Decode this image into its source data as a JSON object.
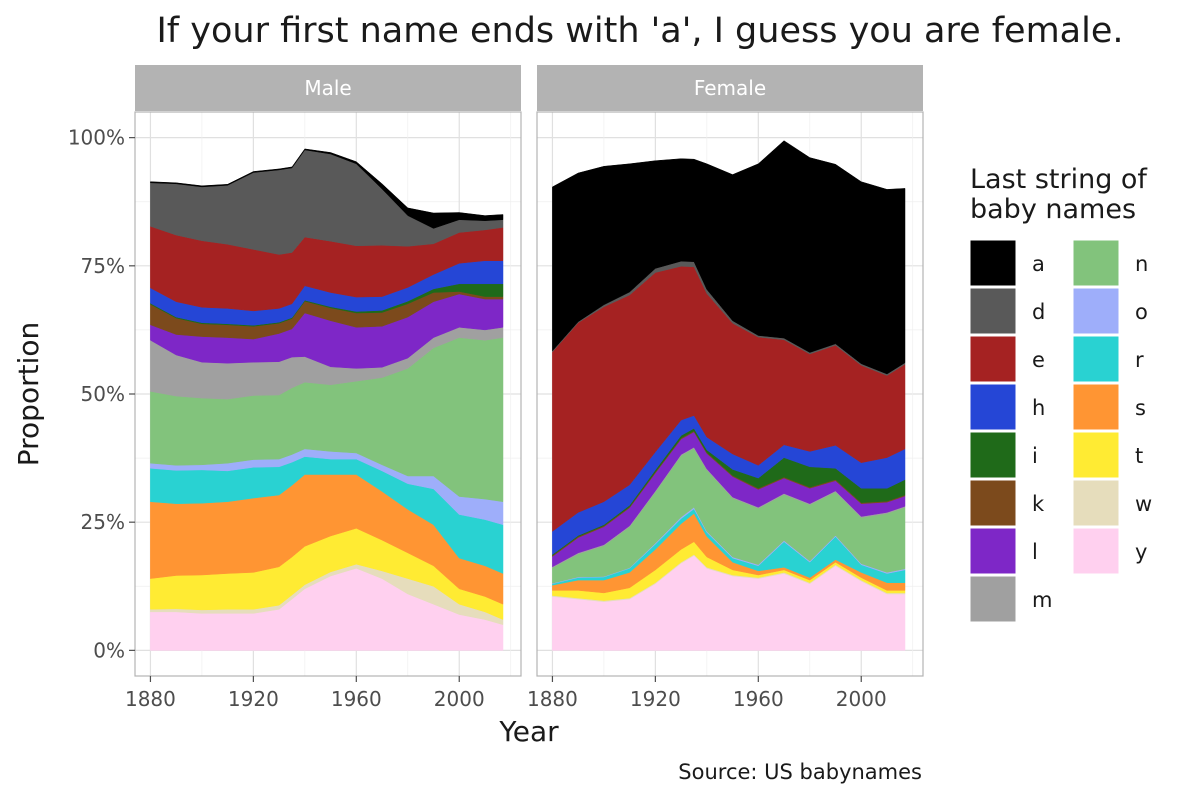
{
  "chart_data": {
    "type": "area",
    "title": "If your first name ends with 'a', I guess you are female.",
    "xlabel": "Year",
    "ylabel": "Proportion",
    "caption": "Source: US babynames",
    "x_ticks": [
      "1880",
      "1920",
      "1960",
      "2000"
    ],
    "y_ticks": [
      "0%",
      "25%",
      "50%",
      "75%",
      "100%"
    ],
    "xlim": [
      1874,
      2024
    ],
    "ylim": [
      -0.05,
      1.05
    ],
    "grid": true,
    "legend": {
      "title": [
        "Last string of",
        "baby names"
      ],
      "position": "right",
      "columns": 2
    },
    "stack_order_bottom_to_top": [
      "y",
      "w",
      "t",
      "s",
      "r",
      "o",
      "n",
      "m",
      "l",
      "k",
      "i",
      "h",
      "e",
      "d",
      "a"
    ],
    "colors": {
      "a": "#000000",
      "d": "#595959",
      "e": "#A52222",
      "h": "#2546D6",
      "i": "#1F6A19",
      "k": "#7C4A1C",
      "l": "#7E27C7",
      "m": "#A0A0A0",
      "n": "#82C37C",
      "o": "#9EAEFA",
      "r": "#29D2D2",
      "s": "#FF9533",
      "t": "#FFEB33",
      "w": "#E6DDBC",
      "y": "#FFD0EF"
    },
    "x": [
      1880,
      1890,
      1900,
      1910,
      1920,
      1930,
      1935,
      1940,
      1950,
      1960,
      1970,
      1980,
      1990,
      2000,
      2010,
      2017
    ],
    "panels": [
      {
        "name": "Male",
        "series": [
          {
            "name": "y",
            "values": [
              0.075,
              0.075,
              0.072,
              0.072,
              0.072,
              0.08,
              0.1,
              0.12,
              0.145,
              0.16,
              0.14,
              0.11,
              0.09,
              0.07,
              0.06,
              0.05
            ]
          },
          {
            "name": "w",
            "values": [
              0.005,
              0.006,
              0.007,
              0.008,
              0.008,
              0.008,
              0.008,
              0.008,
              0.008,
              0.008,
              0.015,
              0.03,
              0.035,
              0.02,
              0.015,
              0.01
            ]
          },
          {
            "name": "t",
            "values": [
              0.06,
              0.065,
              0.068,
              0.07,
              0.072,
              0.075,
              0.074,
              0.075,
              0.07,
              0.07,
              0.06,
              0.05,
              0.04,
              0.03,
              0.03,
              0.03
            ]
          },
          {
            "name": "s",
            "values": [
              0.15,
              0.14,
              0.14,
              0.14,
              0.145,
              0.14,
              0.14,
              0.14,
              0.12,
              0.105,
              0.095,
              0.085,
              0.08,
              0.06,
              0.06,
              0.06
            ]
          },
          {
            "name": "r",
            "values": [
              0.065,
              0.065,
              0.065,
              0.06,
              0.06,
              0.055,
              0.045,
              0.035,
              0.03,
              0.03,
              0.04,
              0.05,
              0.07,
              0.085,
              0.09,
              0.095
            ]
          },
          {
            "name": "o",
            "values": [
              0.01,
              0.01,
              0.01,
              0.015,
              0.015,
              0.015,
              0.015,
              0.015,
              0.015,
              0.012,
              0.012,
              0.015,
              0.025,
              0.035,
              0.04,
              0.045
            ]
          },
          {
            "name": "n",
            "values": [
              0.14,
              0.135,
              0.13,
              0.125,
              0.125,
              0.125,
              0.13,
              0.13,
              0.13,
              0.14,
              0.17,
              0.21,
              0.25,
              0.31,
              0.31,
              0.32
            ]
          },
          {
            "name": "m",
            "values": [
              0.1,
              0.08,
              0.07,
              0.07,
              0.065,
              0.065,
              0.06,
              0.05,
              0.035,
              0.025,
              0.02,
              0.02,
              0.02,
              0.02,
              0.02,
              0.02
            ]
          },
          {
            "name": "l",
            "values": [
              0.03,
              0.04,
              0.05,
              0.05,
              0.045,
              0.055,
              0.055,
              0.085,
              0.09,
              0.08,
              0.08,
              0.08,
              0.07,
              0.065,
              0.06,
              0.055
            ]
          },
          {
            "name": "k",
            "values": [
              0.04,
              0.032,
              0.025,
              0.025,
              0.025,
              0.02,
              0.02,
              0.023,
              0.025,
              0.028,
              0.027,
              0.026,
              0.018,
              0.005,
              0.005,
              0.005
            ]
          },
          {
            "name": "i",
            "values": [
              0.002,
              0.002,
              0.002,
              0.002,
              0.002,
              0.002,
              0.002,
              0.002,
              0.002,
              0.003,
              0.004,
              0.005,
              0.007,
              0.015,
              0.025,
              0.025
            ]
          },
          {
            "name": "h",
            "values": [
              0.03,
              0.03,
              0.03,
              0.03,
              0.028,
              0.027,
              0.027,
              0.028,
              0.028,
              0.028,
              0.027,
              0.027,
              0.028,
              0.04,
              0.045,
              0.045
            ]
          },
          {
            "name": "e",
            "values": [
              0.12,
              0.13,
              0.13,
              0.125,
              0.12,
              0.105,
              0.1,
              0.095,
              0.1,
              0.1,
              0.1,
              0.08,
              0.06,
              0.06,
              0.06,
              0.065
            ]
          },
          {
            "name": "d",
            "values": [
              0.085,
              0.1,
              0.105,
              0.115,
              0.15,
              0.165,
              0.165,
              0.17,
              0.17,
              0.16,
              0.11,
              0.06,
              0.03,
              0.025,
              0.018,
              0.015
            ]
          },
          {
            "name": "a",
            "values": [
              0.002,
              0.002,
              0.002,
              0.002,
              0.002,
              0.002,
              0.002,
              0.002,
              0.003,
              0.004,
              0.01,
              0.015,
              0.03,
              0.014,
              0.01,
              0.01
            ]
          }
        ]
      },
      {
        "name": "Female",
        "series": [
          {
            "name": "y",
            "values": [
              0.105,
              0.1,
              0.095,
              0.1,
              0.13,
              0.17,
              0.185,
              0.16,
              0.145,
              0.14,
              0.15,
              0.13,
              0.165,
              0.135,
              0.11,
              0.11
            ]
          },
          {
            "name": "w",
            "values": [
              0.002,
              0.002,
              0.002,
              0.002,
              0.002,
              0.002,
              0.002,
              0.002,
              0.002,
              0.002,
              0.002,
              0.002,
              0.002,
              0.002,
              0.002,
              0.002
            ]
          },
          {
            "name": "t",
            "values": [
              0.01,
              0.015,
              0.015,
              0.02,
              0.025,
              0.025,
              0.025,
              0.02,
              0.01,
              0.005,
              0.005,
              0.005,
              0.005,
              0.005,
              0.005,
              0.005
            ]
          },
          {
            "name": "s",
            "values": [
              0.01,
              0.02,
              0.025,
              0.03,
              0.04,
              0.05,
              0.055,
              0.04,
              0.015,
              0.008,
              0.005,
              0.005,
              0.005,
              0.01,
              0.015,
              0.015
            ]
          },
          {
            "name": "r",
            "values": [
              0.003,
              0.005,
              0.006,
              0.008,
              0.01,
              0.01,
              0.009,
              0.008,
              0.008,
              0.01,
              0.05,
              0.03,
              0.045,
              0.015,
              0.018,
              0.025
            ]
          },
          {
            "name": "o",
            "values": [
              0.001,
              0.001,
              0.001,
              0.001,
              0.002,
              0.003,
              0.003,
              0.002,
              0.002,
              0.002,
              0.002,
              0.002,
              0.002,
              0.002,
              0.002,
              0.002
            ]
          },
          {
            "name": "n",
            "values": [
              0.03,
              0.045,
              0.06,
              0.08,
              0.1,
              0.12,
              0.115,
              0.12,
              0.115,
              0.11,
              0.09,
              0.11,
              0.085,
              0.09,
              0.115,
              0.12
            ]
          },
          {
            "name": "m",
            "values": [
              0.002,
              0.002,
              0.002,
              0.002,
              0.002,
              0.002,
              0.002,
              0.002,
              0.002,
              0.002,
              0.002,
              0.002,
              0.002,
              0.002,
              0.002,
              0.002
            ]
          },
          {
            "name": "l",
            "values": [
              0.02,
              0.03,
              0.035,
              0.035,
              0.035,
              0.03,
              0.03,
              0.03,
              0.04,
              0.035,
              0.03,
              0.03,
              0.02,
              0.025,
              0.02,
              0.02
            ]
          },
          {
            "name": "k",
            "values": [
              0.002,
              0.002,
              0.002,
              0.002,
              0.002,
              0.002,
              0.002,
              0.002,
              0.002,
              0.002,
              0.002,
              0.002,
              0.002,
              0.002,
              0.002,
              0.002
            ]
          },
          {
            "name": "i",
            "values": [
              0.002,
              0.002,
              0.002,
              0.003,
              0.004,
              0.005,
              0.005,
              0.005,
              0.012,
              0.02,
              0.038,
              0.04,
              0.022,
              0.028,
              0.025,
              0.03
            ]
          },
          {
            "name": "h",
            "values": [
              0.045,
              0.045,
              0.045,
              0.04,
              0.035,
              0.03,
              0.025,
              0.025,
              0.03,
              0.025,
              0.025,
              0.03,
              0.045,
              0.05,
              0.06,
              0.06
            ]
          },
          {
            "name": "e",
            "values": [
              0.35,
              0.37,
              0.38,
              0.37,
              0.35,
              0.3,
              0.29,
              0.28,
              0.255,
              0.25,
              0.205,
              0.19,
              0.195,
              0.19,
              0.16,
              0.165
            ]
          },
          {
            "name": "d",
            "values": [
              0.002,
              0.002,
              0.004,
              0.006,
              0.008,
              0.01,
              0.01,
              0.008,
              0.005,
              0.003,
              0.003,
              0.003,
              0.003,
              0.003,
              0.003,
              0.003
            ]
          },
          {
            "name": "a",
            "values": [
              0.32,
              0.29,
              0.27,
              0.25,
              0.21,
              0.2,
              0.2,
              0.245,
              0.285,
              0.335,
              0.385,
              0.38,
              0.35,
              0.355,
              0.36,
              0.34
            ]
          }
        ]
      }
    ]
  }
}
